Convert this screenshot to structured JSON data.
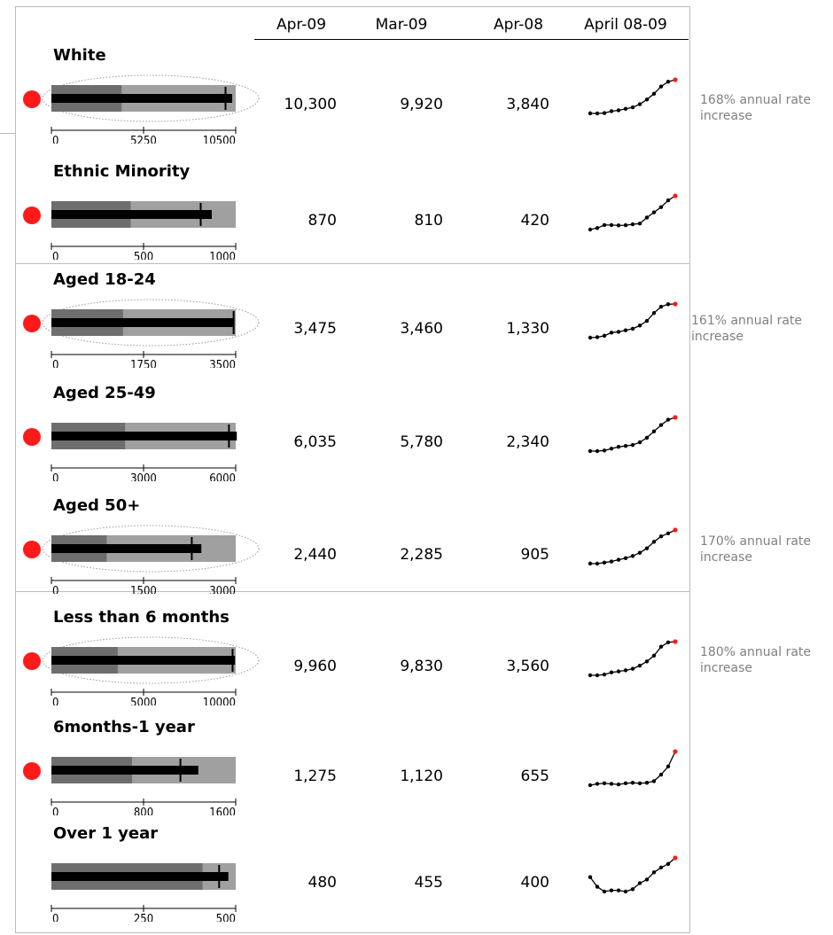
{
  "columns": [
    "Apr-09",
    "Mar-09",
    "Apr-08",
    "April 08-09"
  ],
  "colors": {
    "dot": "#ff1a1a",
    "band_dark": "#6e6e6e",
    "band_light": "#a0a0a0",
    "bar": "#000000",
    "spark_end": "#ff1a1a",
    "frame": "#bdbdbd",
    "note": "#808080"
  },
  "chart_data": {
    "type": "table",
    "rows": [
      {
        "label": "White",
        "apr09": "10,300",
        "mar09": "9,920",
        "apr08": "3,840",
        "value": 10300,
        "marker": 9920,
        "band": 4000,
        "max": 10500,
        "ticks": [
          "0",
          "5250",
          "10500"
        ],
        "ticks_values": [
          0,
          5250,
          10500
        ],
        "alert": true,
        "ring": true,
        "note": "168% annual rate increase",
        "spark": [
          3840,
          3820,
          3900,
          4250,
          4420,
          4700,
          5000,
          5600,
          6500,
          7600,
          9000,
          9920,
          10300
        ]
      },
      {
        "label": "Ethnic Minority",
        "apr09": "870",
        "mar09": "810",
        "apr08": "420",
        "value": 870,
        "marker": 810,
        "band": 430,
        "max": 1000,
        "ticks": [
          "0",
          "500",
          "1000"
        ],
        "ticks_values": [
          0,
          500,
          1000
        ],
        "alert": true,
        "ring": false,
        "spark": [
          420,
          440,
          480,
          480,
          475,
          478,
          490,
          500,
          580,
          650,
          720,
          810,
          870
        ]
      },
      {
        "label": "Aged 18-24",
        "apr09": "3,475",
        "mar09": "3,460",
        "apr08": "1,330",
        "value": 3475,
        "marker": 3460,
        "band": 1360,
        "max": 3500,
        "ticks": [
          "0",
          "1750",
          "3500"
        ],
        "ticks_values": [
          0,
          1750,
          3500
        ],
        "alert": true,
        "ring": true,
        "note": "161% annual rate increase",
        "spark": [
          1330,
          1360,
          1450,
          1650,
          1700,
          1800,
          1900,
          2100,
          2400,
          2900,
          3300,
          3460,
          3475
        ]
      },
      {
        "label": "Aged 25-49",
        "apr09": "6,035",
        "mar09": "5,780",
        "apr08": "2,340",
        "value": 6035,
        "marker": 5780,
        "band": 2400,
        "max": 6000,
        "ticks": [
          "0",
          "3000",
          "6000"
        ],
        "ticks_values": [
          0,
          3000,
          6000
        ],
        "alert": true,
        "ring": false,
        "spark": [
          2340,
          2330,
          2400,
          2600,
          2800,
          2900,
          3000,
          3300,
          3800,
          4500,
          5200,
          5780,
          6035
        ]
      },
      {
        "label": "Aged 50+",
        "apr09": "2,440",
        "mar09": "2,285",
        "apr08": "905",
        "value": 2440,
        "marker": 2285,
        "band": 900,
        "max": 3000,
        "ticks": [
          "0",
          "1500",
          "3000"
        ],
        "ticks_values": [
          0,
          1500,
          3000
        ],
        "alert": true,
        "ring": true,
        "note": "170% annual rate increase",
        "spark": [
          905,
          900,
          950,
          1000,
          1080,
          1150,
          1250,
          1400,
          1600,
          1900,
          2150,
          2285,
          2440
        ]
      },
      {
        "label": "Less than 6 months",
        "apr09": "9,960",
        "mar09": "9,830",
        "apr08": "3,560",
        "value": 9960,
        "marker": 9830,
        "band": 3600,
        "max": 10000,
        "ticks": [
          "0",
          "5000",
          "10000"
        ],
        "ticks_values": [
          0,
          5000,
          10000
        ],
        "alert": true,
        "ring": true,
        "note": "180% annual rate increase",
        "spark": [
          3560,
          3550,
          3700,
          4100,
          4300,
          4500,
          4800,
          5400,
          6200,
          7300,
          9000,
          9830,
          9960
        ]
      },
      {
        "label": "6months-1 year",
        "apr09": "1,275",
        "mar09": "1,120",
        "apr08": "655",
        "value": 1275,
        "marker": 1120,
        "band": 700,
        "max": 1600,
        "ticks": [
          "0",
          "800",
          "1600"
        ],
        "ticks_values": [
          0,
          800,
          1600
        ],
        "alert": true,
        "ring": false,
        "spark": [
          655,
          680,
          690,
          680,
          670,
          690,
          700,
          690,
          700,
          730,
          850,
          1000,
          1275
        ]
      },
      {
        "label": "Over 1 year",
        "apr09": "480",
        "mar09": "455",
        "apr08": "400",
        "value": 480,
        "marker": 455,
        "band": 410,
        "max": 500,
        "ticks": [
          "0",
          "250",
          "500"
        ],
        "ticks_values": [
          0,
          250,
          500
        ],
        "alert": false,
        "ring": false,
        "spark": [
          400,
          360,
          340,
          345,
          345,
          340,
          350,
          375,
          390,
          420,
          440,
          455,
          480
        ]
      }
    ]
  }
}
